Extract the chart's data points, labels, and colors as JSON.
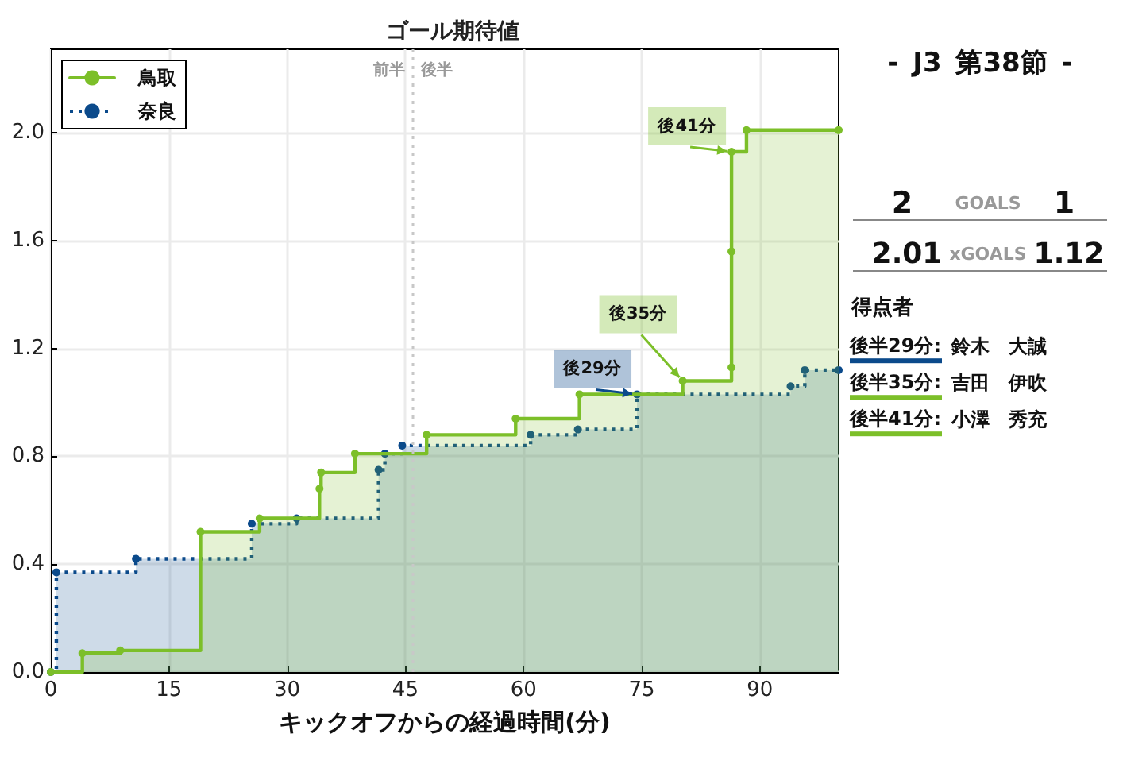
{
  "chart_data": [
    {
      "type": "step",
      "title": "ゴール期待値",
      "xlabel": "キックオフからの経過時間(分)",
      "series": [
        {
          "name": "鳥取",
          "color": "#7cbf29",
          "line_style": "solid",
          "x": [
            0,
            4,
            8.8,
            19,
            26.5,
            34.1,
            34.3,
            38.6,
            47.7,
            59,
            67.1,
            80.2,
            86.4,
            86.4,
            86.4,
            88.3,
            100
          ],
          "values": [
            0,
            0.07,
            0.08,
            0.52,
            0.57,
            0.68,
            0.74,
            0.81,
            0.88,
            0.94,
            1.03,
            1.08,
            1.13,
            1.56,
            1.93,
            2.01,
            2.01
          ]
        },
        {
          "name": "奈良",
          "color": "#0b4a8b",
          "line_style": "dotted",
          "x": [
            0,
            0.7,
            10.8,
            25.5,
            31.2,
            41.6,
            42.4,
            44.6,
            60.9,
            66.9,
            74.4,
            93.9,
            95.7,
            100
          ],
          "values": [
            0,
            0.37,
            0.42,
            0.55,
            0.57,
            0.75,
            0.81,
            0.84,
            0.88,
            0.9,
            1.03,
            1.06,
            1.12,
            1.12
          ]
        }
      ],
      "xlim": [
        0,
        100
      ],
      "xticks": [
        0,
        15,
        30,
        45,
        60,
        75,
        90
      ],
      "ylim": [
        0,
        2.31
      ],
      "yticks": [
        {
          "value": 0,
          "label": "0.0"
        },
        0.4,
        0.8,
        1.2,
        1.6,
        {
          "value": 2,
          "label": "2.0"
        }
      ],
      "ref_lines": [
        {
          "axis": "x",
          "value": 46,
          "color": "#c8c8c8",
          "line_style": "dotted"
        }
      ],
      "annotations": [
        {
          "text": "前半",
          "x": 46,
          "y": 2.23
        },
        {
          "text": "後半",
          "x": 46,
          "y": 2.23
        },
        {
          "text": "後29分",
          "x": 74.4,
          "y": 1.03
        },
        {
          "text": "後35分",
          "x": 80.2,
          "y": 1.08
        },
        {
          "text": "後41分",
          "x": 86.4,
          "y": 1.93
        }
      ],
      "grid": true,
      "legend": "top left",
      "marker": "circle"
    },
    {
      "type": "other",
      "title": "- J3 第38節 -",
      "annotations": [
        "2",
        "GOALS",
        "1",
        "2.01",
        "xGOALS",
        "1.12",
        "得点者",
        "後半29分:",
        "鈴木　大誠",
        "後半35分:",
        "吉田　伊吹",
        "後半41分:",
        "小澤　秀充"
      ],
      "colors": [
        "#0b4a8b",
        "#7cbf29",
        "#7cbf29"
      ]
    }
  ]
}
